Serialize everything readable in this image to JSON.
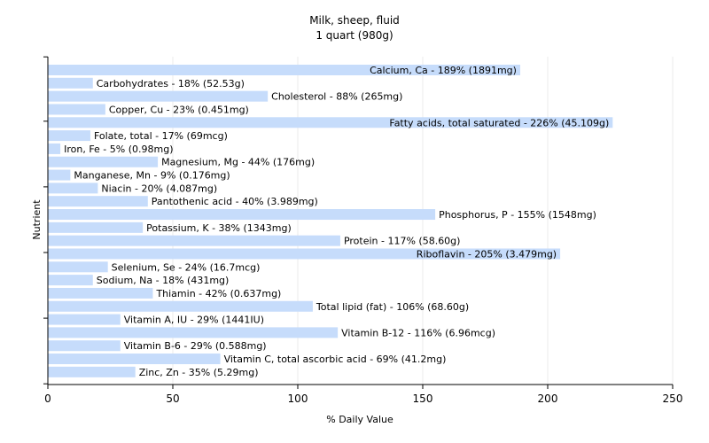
{
  "chart_data": {
    "type": "bar",
    "orientation": "horizontal",
    "title": "Milk, sheep, fluid",
    "subtitle": "1 quart (980g)",
    "xlabel": "% Daily Value",
    "ylabel": "Nutrient",
    "xlim": [
      0,
      250
    ],
    "xticks": [
      0,
      50,
      100,
      150,
      200,
      250
    ],
    "grid": true,
    "bar_color": "#c6dcfb",
    "categories": [
      "Calcium, Ca - 189% (1891mg)",
      "Carbohydrates - 18% (52.53g)",
      "Cholesterol - 88% (265mg)",
      "Copper, Cu - 23% (0.451mg)",
      "Fatty acids, total saturated - 226% (45.109g)",
      "Folate, total - 17% (69mcg)",
      "Iron, Fe - 5% (0.98mg)",
      "Magnesium, Mg - 44% (176mg)",
      "Manganese, Mn - 9% (0.176mg)",
      "Niacin - 20% (4.087mg)",
      "Pantothenic acid - 40% (3.989mg)",
      "Phosphorus, P - 155% (1548mg)",
      "Potassium, K - 38% (1343mg)",
      "Protein - 117% (58.60g)",
      "Riboflavin - 205% (3.479mg)",
      "Selenium, Se - 24% (16.7mcg)",
      "Sodium, Na - 18% (431mg)",
      "Thiamin - 42% (0.637mg)",
      "Total lipid (fat) - 106% (68.60g)",
      "Vitamin A, IU - 29% (1441IU)",
      "Vitamin B-12 - 116% (6.96mcg)",
      "Vitamin B-6 - 29% (0.588mg)",
      "Vitamin C, total ascorbic acid - 69% (41.2mg)",
      "Zinc, Zn - 35% (5.29mg)"
    ],
    "values": [
      189,
      18,
      88,
      23,
      226,
      17,
      5,
      44,
      9,
      20,
      40,
      155,
      38,
      117,
      205,
      24,
      18,
      42,
      106,
      29,
      116,
      29,
      69,
      35
    ]
  }
}
